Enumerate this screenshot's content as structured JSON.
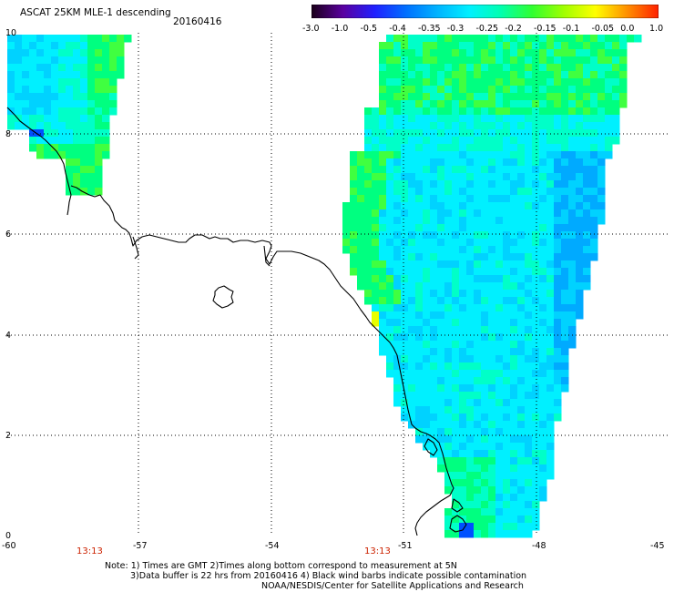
{
  "header": {
    "title": "ASCAT 25KM MLE-1 descending",
    "date": "20160416"
  },
  "colorbar": {
    "labels": [
      "-3.0",
      "-1.0",
      "-0.5",
      "-0.4",
      "-0.35",
      "-0.3",
      "-0.25",
      "-0.2",
      "-0.15",
      "-0.1",
      "-0.05",
      "0.0",
      "1.0"
    ],
    "colors": [
      "#1a0018",
      "#5a00a0",
      "#2020ff",
      "#0070ff",
      "#00b4ff",
      "#00f0ff",
      "#00ffb0",
      "#30ff30",
      "#a0ff00",
      "#ffff00",
      "#ff9000",
      "#ff2000"
    ]
  },
  "axes": {
    "x_ticks": [
      "-60",
      "-57",
      "-54",
      "-51",
      "-48",
      "-45"
    ],
    "y_ticks": [
      "10",
      "8",
      "6",
      "4",
      "2",
      "0"
    ]
  },
  "pass_times": [
    "13:13",
    "13:13"
  ],
  "notes": [
    "Note: 1) Times are GMT 2)Times along bottom correspond to measurement at 5N",
    "3)Data buffer is 22 hrs from 20160416 4) Black wind barbs indicate possible contamination",
    "NOAA/NESDIS/Center for Satellite Applications and Research"
  ],
  "palette": {
    "cyan": "#00f0ff",
    "lightblue": "#00d2ff",
    "blue": "#00aaff",
    "teal": "#00ffc8",
    "green": "#00ff80",
    "yellowgreen": "#40ff40",
    "yellow": "#e8ff00",
    "orange": "#ff8a00",
    "deepblue": "#0050ff"
  }
}
